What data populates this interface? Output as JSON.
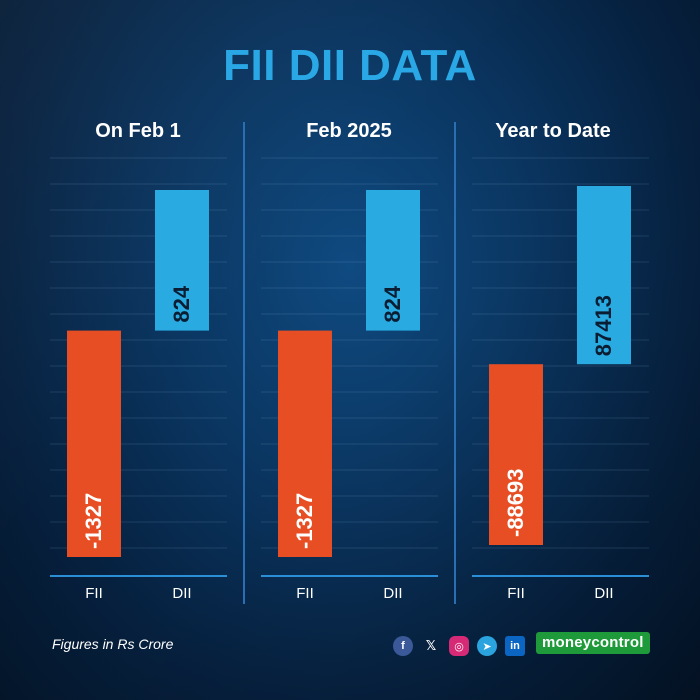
{
  "title": "FII DII DATA",
  "footnote": "Figures in Rs Crore",
  "brand": "moneycontrol",
  "social_icons": [
    "facebook-icon",
    "x-icon",
    "instagram-icon",
    "telegram-icon",
    "linkedin-icon"
  ],
  "social_glyphs": [
    "f",
    "𝕏",
    "◎",
    "➤",
    "in"
  ],
  "colors": {
    "fii": "#e84e24",
    "dii": "#29abe2",
    "title": "#2aa8e6",
    "brand": "#1e9a3a"
  },
  "chart_data": [
    {
      "type": "bar",
      "title": "On Feb 1",
      "categories": [
        "FII",
        "DII"
      ],
      "values": [
        -1327,
        824
      ],
      "labels": [
        "-1327",
        "824"
      ]
    },
    {
      "type": "bar",
      "title": "Feb 2025",
      "categories": [
        "FII",
        "DII"
      ],
      "values": [
        -1327,
        824
      ],
      "labels": [
        "-1327",
        "824"
      ]
    },
    {
      "type": "bar",
      "title": "Year to Date",
      "categories": [
        "FII",
        "DII"
      ],
      "values": [
        -88693,
        87413
      ],
      "labels": [
        "-88693",
        "87413"
      ]
    }
  ]
}
